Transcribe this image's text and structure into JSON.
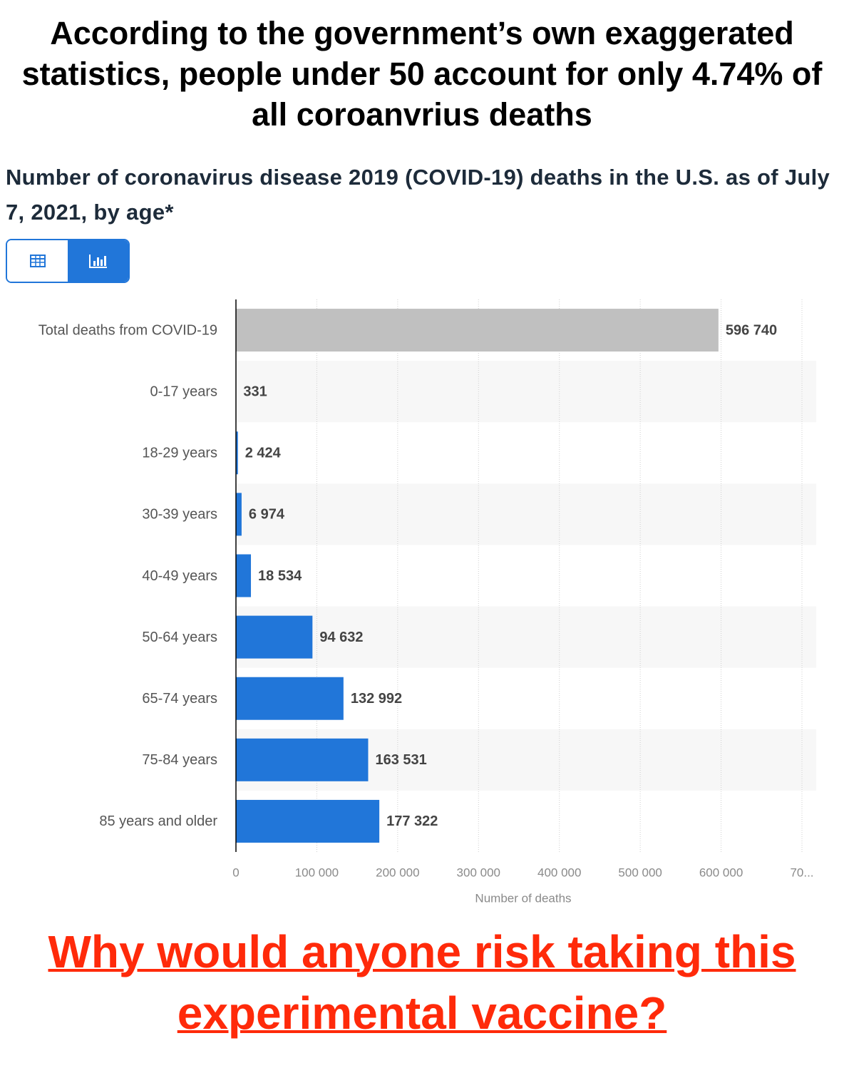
{
  "header": {
    "title": "According to the government’s own exaggerated statistics, people under 50 account for only 4.74% of all coroanvrius deaths"
  },
  "chart_data": {
    "type": "bar",
    "orientation": "horizontal",
    "title": "Number of coronavirus disease 2019 (COVID-19) deaths in the U.S. as of July 7, 2021, by age*",
    "categories": [
      "Total deaths from COVID-19",
      "0-17 years",
      "18-29 years",
      "30-39 years",
      "40-49 years",
      "50-64 years",
      "65-74 years",
      "75-84 years",
      "85 years and older"
    ],
    "values": [
      596740,
      331,
      2424,
      6974,
      18534,
      94632,
      132992,
      163531,
      177322
    ],
    "value_labels": [
      "596 740",
      "331",
      "2 424",
      "6 974",
      "18 534",
      "94 632",
      "132 992",
      "163 531",
      "177 322"
    ],
    "colors": [
      "#c0c0c0",
      "#2176d9",
      "#2176d9",
      "#2176d9",
      "#2176d9",
      "#2176d9",
      "#2176d9",
      "#2176d9",
      "#2176d9"
    ],
    "xlim": [
      0,
      700000
    ],
    "xticks": [
      0,
      {
        "value": 100000,
        "label": "100 000"
      },
      {
        "value": 200000,
        "label": "200 000"
      },
      {
        "value": 300000,
        "label": "300 000"
      },
      {
        "value": 400000,
        "label": "400 000"
      },
      {
        "value": 500000,
        "label": "500 000"
      },
      {
        "value": 600000,
        "label": "600 000"
      },
      {
        "value": 700000,
        "label": "70..."
      }
    ],
    "x_label": "Number of deaths",
    "grid": true
  },
  "footer": {
    "text": "Why would anyone risk taking this experimental vaccine?"
  }
}
